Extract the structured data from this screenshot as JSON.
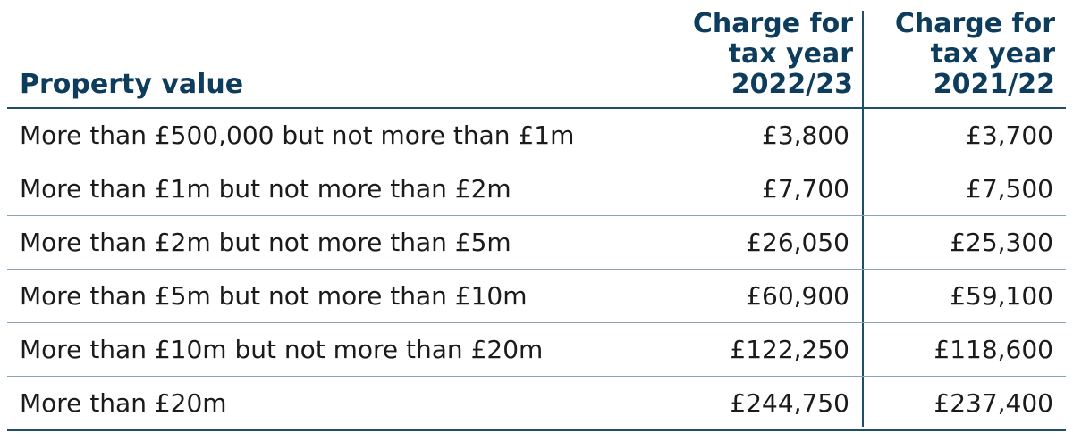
{
  "table": {
    "headers": {
      "property_value": "Property value",
      "charge_2022_23": [
        "Charge for",
        "tax year",
        "2022/23"
      ],
      "charge_2021_22": [
        "Charge for",
        "tax year",
        "2021/22"
      ]
    },
    "rows": [
      {
        "property": "More than £500,000 but not more than £1m",
        "charge_2022_23": "£3,800",
        "charge_2021_22": "£3,700"
      },
      {
        "property": "More than £1m but not more than £2m",
        "charge_2022_23": "£7,700",
        "charge_2021_22": "£7,500"
      },
      {
        "property": "More than £2m but not more than £5m",
        "charge_2022_23": "£26,050",
        "charge_2021_22": "£25,300"
      },
      {
        "property": "More than £5m but not more than £10m",
        "charge_2022_23": "£60,900",
        "charge_2021_22": "£59,100"
      },
      {
        "property": "More than £10m but not more than £20m",
        "charge_2022_23": "£122,250",
        "charge_2021_22": "£118,600"
      },
      {
        "property": "More than £20m",
        "charge_2022_23": "£244,750",
        "charge_2021_22": "£237,400"
      }
    ]
  },
  "colors": {
    "header_text": "#0d3c5c",
    "rule_dark": "#1f4e68",
    "rule_light": "#8aa4b4"
  }
}
